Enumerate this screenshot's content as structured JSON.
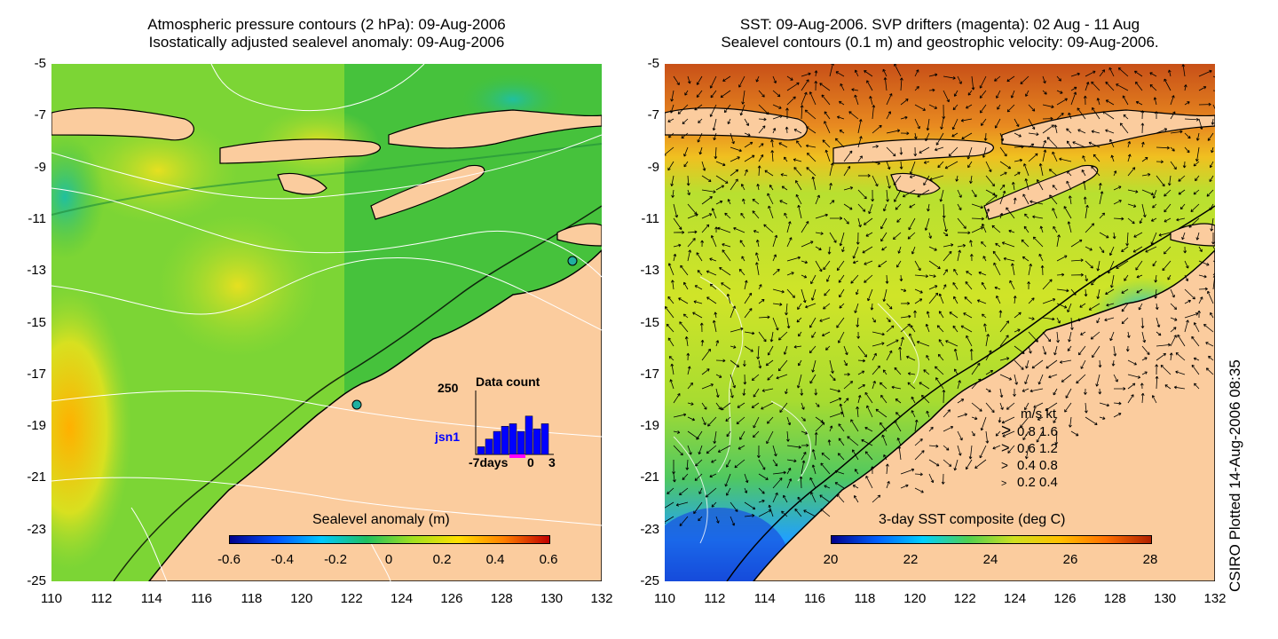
{
  "left_panel": {
    "title_line1": "Atmospheric pressure contours (2 hPa): 09-Aug-2006",
    "title_line2": "Isostatically adjusted sealevel anomaly: 09-Aug-2006",
    "colorbar": {
      "title": "Sealevel anomaly (m)",
      "labels": [
        "-0.6",
        "-0.4",
        "-0.2",
        "0",
        "0.2",
        "0.4",
        "0.6"
      ],
      "colors": [
        "#00008c",
        "#0050ff",
        "#00c8ff",
        "#20c060",
        "#a0e020",
        "#ffe000",
        "#ff8000",
        "#c00000"
      ]
    },
    "inset": {
      "title": "Data count",
      "y_max": "250",
      "station": "jsn1",
      "x_labels": [
        "-7days",
        "0",
        "3"
      ],
      "bar_counts": [
        30,
        60,
        90,
        110,
        120,
        90,
        150,
        100,
        120
      ],
      "colors": {
        "bars": "#0000ff",
        "axis": "#000000",
        "station": "#0000ff",
        "marker": "#ff00ff"
      }
    },
    "colors": {
      "field": "#40c040",
      "land": "#fbcc9e",
      "coast": "#000000",
      "contours": "#ffffff"
    }
  },
  "right_panel": {
    "title_line1": "SST: 09-Aug-2006. SVP drifters (magenta): 02 Aug - 11 Aug",
    "title_line2": "Sealevel contours (0.1 m) and geostrophic velocity: 09-Aug-2006.",
    "colorbar": {
      "title": "3-day SST composite (deg C)",
      "labels": [
        "20",
        "22",
        "24",
        "26",
        "28"
      ],
      "colors": [
        "#00008c",
        "#0060ff",
        "#00d0ff",
        "#50d050",
        "#d0e020",
        "#ffc000",
        "#ff7000",
        "#b02000"
      ]
    },
    "velocity_legend": {
      "header": "m/s  kt",
      "rows": [
        {
          "ms": "0.8",
          "kt": "1.6",
          "scale": 0.8
        },
        {
          "ms": "0.6",
          "kt": "1.2",
          "scale": 0.6
        },
        {
          "ms": "0.4",
          "kt": "0.8",
          "scale": 0.4
        },
        {
          "ms": "0.2",
          "kt": "0.4",
          "scale": 0.2
        }
      ]
    },
    "colors": {
      "warm": "#e07020",
      "mid": "#a8dc30",
      "cool": "#30c0ff",
      "land": "#fbcc9e",
      "arrows": "#000000"
    }
  },
  "axes": {
    "y_labels": [
      "-5",
      "-7",
      "-9",
      "-11",
      "-13",
      "-15",
      "-17",
      "-19",
      "-21",
      "-23",
      "-25"
    ],
    "x_labels": [
      "110",
      "112",
      "114",
      "116",
      "118",
      "120",
      "122",
      "124",
      "126",
      "128",
      "130",
      "132"
    ],
    "lon_range": [
      110,
      132
    ],
    "lat_range": [
      -25,
      -5
    ]
  },
  "footer": {
    "plotted_stamp": "CSIRO Plotted 14-Aug-2006 08:35"
  }
}
